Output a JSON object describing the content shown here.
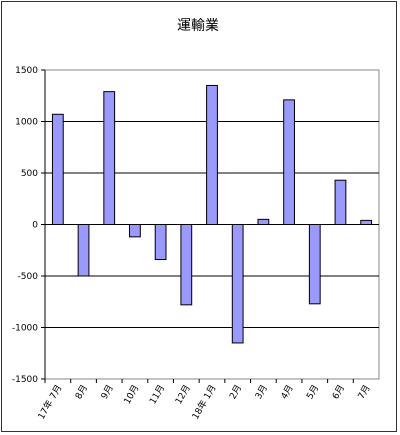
{
  "chart_data": {
    "type": "bar",
    "title": "運輸業",
    "categories": [
      "17年 7月",
      "8月",
      "9月",
      "10月",
      "11月",
      "12月",
      "18年 1月",
      "2月",
      "3月",
      "4月",
      "5月",
      "6月",
      "7月"
    ],
    "values": [
      1070,
      -500,
      1290,
      -120,
      -340,
      -780,
      1350,
      -1150,
      50,
      1210,
      -770,
      430,
      40
    ],
    "ylim": [
      -1500,
      1500
    ],
    "yticks": [
      1500,
      1000,
      500,
      0,
      -500,
      -1000,
      -1500
    ],
    "grid": true,
    "bar_color": "#9999ff",
    "xlabel": "",
    "ylabel": ""
  }
}
